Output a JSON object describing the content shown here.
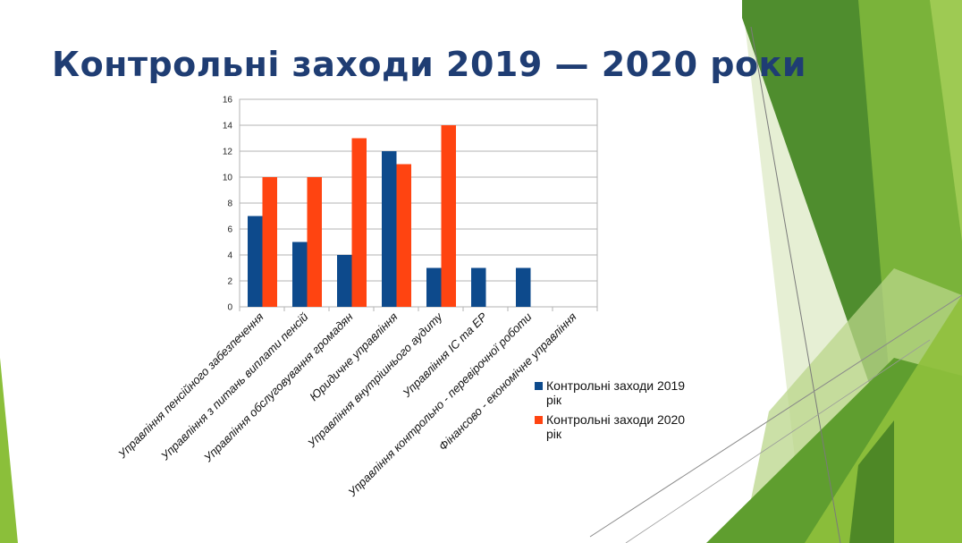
{
  "slide": {
    "title": "Контрольні заходи 2019 — 2020 роки"
  },
  "colors": {
    "series_2019": "#0d4a8c",
    "series_2020": "#ff4411",
    "title": "#1f3d73",
    "green_dark": "#4a8a2a",
    "green_mid": "#6aa832",
    "green_light": "#9cc85a",
    "green_pale": "#c8dca0"
  },
  "chart_data": {
    "type": "bar",
    "title": "",
    "xlabel": "",
    "ylabel": "",
    "ylim": [
      0,
      16
    ],
    "yticks": [
      "0",
      "2",
      "4",
      "6",
      "8",
      "10",
      "12",
      "14",
      "16"
    ],
    "grid": true,
    "legend_position": "right",
    "categories": [
      "Управління пенсійного забезпечення",
      "Управління з питань виплати пенсій",
      "Управління обслуговування громадян",
      "Юридичне управління",
      "Управління внутрішнього аудиту",
      "Управління ІС та ЕР",
      "Управління контрольно - перевірочної роботи",
      "Фінансово - економічне управління"
    ],
    "series": [
      {
        "name": "Контрольні заходи 2019 рік",
        "legend_lines": [
          "Контрольні заходи 2019",
          "рік"
        ],
        "values": [
          7,
          5,
          4,
          12,
          3,
          3,
          3,
          0
        ]
      },
      {
        "name": "Контрольні заходи 2020 рік",
        "legend_lines": [
          "Контрольні заходи 2020",
          "рік"
        ],
        "values": [
          10,
          10,
          13,
          11,
          14,
          0,
          0,
          0
        ]
      }
    ]
  }
}
